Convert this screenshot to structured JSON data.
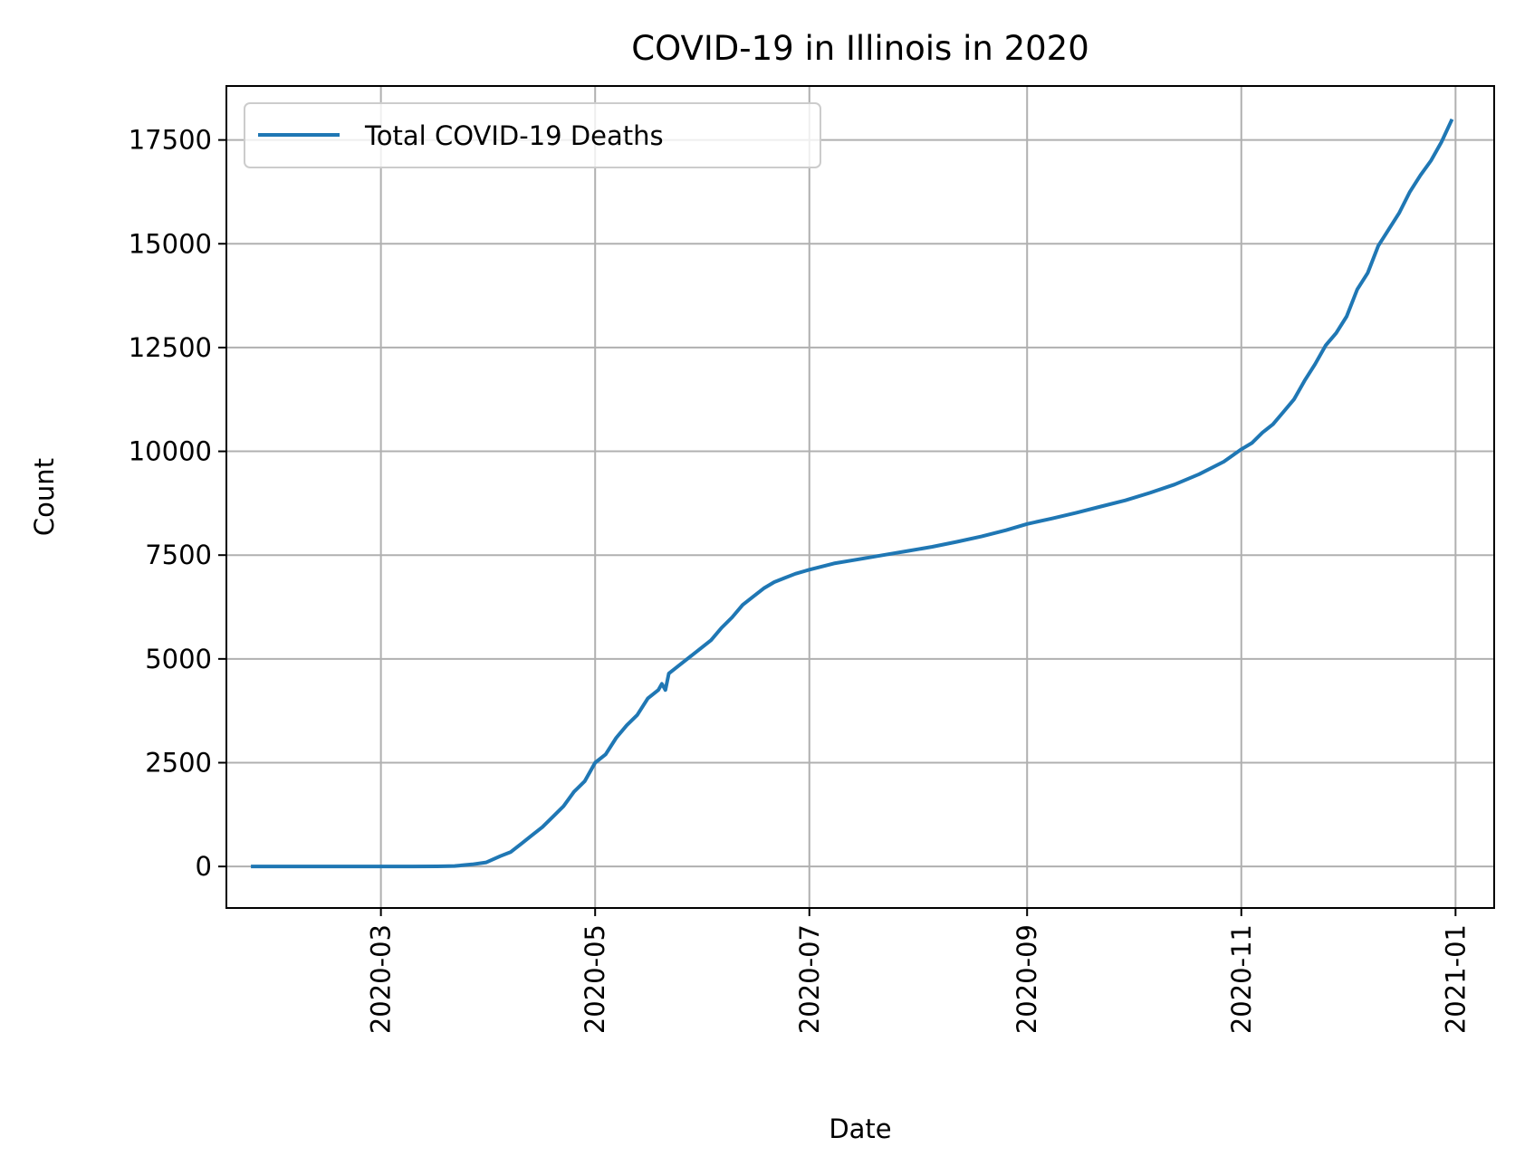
{
  "chart_data": {
    "type": "line",
    "title": "COVID-19 in Illinois in 2020",
    "xlabel": "Date",
    "ylabel": "Count",
    "xlim": [
      "2020-01-17",
      "2021-01-12"
    ],
    "ylim": [
      -1000,
      18800
    ],
    "x_ticks": [
      "2020-03-01",
      "2020-05-01",
      "2020-07-01",
      "2020-09-01",
      "2020-11-01",
      "2021-01-01"
    ],
    "x_tick_labels": [
      "2020-03",
      "2020-05",
      "2020-07",
      "2020-09",
      "2020-11",
      "2021-01"
    ],
    "y_ticks": [
      0,
      2500,
      5000,
      7500,
      10000,
      12500,
      15000,
      17500
    ],
    "y_tick_labels": [
      "0",
      "2500",
      "5000",
      "7500",
      "10000",
      "12500",
      "15000",
      "17500"
    ],
    "grid": true,
    "legend": {
      "placement": "top-left",
      "entries": [
        "Total COVID-19 Deaths"
      ]
    },
    "series": [
      {
        "name": "Total COVID-19 Deaths",
        "color": "#1f77b4",
        "points": [
          [
            "2020-01-24",
            0
          ],
          [
            "2020-02-15",
            0
          ],
          [
            "2020-03-01",
            0
          ],
          [
            "2020-03-10",
            0
          ],
          [
            "2020-03-17",
            2
          ],
          [
            "2020-03-22",
            12
          ],
          [
            "2020-03-27",
            50
          ],
          [
            "2020-03-31",
            100
          ],
          [
            "2020-04-04",
            250
          ],
          [
            "2020-04-07",
            350
          ],
          [
            "2020-04-10",
            550
          ],
          [
            "2020-04-13",
            750
          ],
          [
            "2020-04-16",
            950
          ],
          [
            "2020-04-19",
            1200
          ],
          [
            "2020-04-22",
            1450
          ],
          [
            "2020-04-25",
            1800
          ],
          [
            "2020-04-28",
            2050
          ],
          [
            "2020-05-01",
            2500
          ],
          [
            "2020-05-04",
            2700
          ],
          [
            "2020-05-07",
            3100
          ],
          [
            "2020-05-10",
            3400
          ],
          [
            "2020-05-13",
            3650
          ],
          [
            "2020-05-16",
            4050
          ],
          [
            "2020-05-19",
            4250
          ],
          [
            "2020-05-20",
            4400
          ],
          [
            "2020-05-21",
            4250
          ],
          [
            "2020-05-22",
            4650
          ],
          [
            "2020-05-25",
            4850
          ],
          [
            "2020-05-28",
            5050
          ],
          [
            "2020-05-31",
            5250
          ],
          [
            "2020-06-03",
            5450
          ],
          [
            "2020-06-06",
            5750
          ],
          [
            "2020-06-09",
            6000
          ],
          [
            "2020-06-12",
            6300
          ],
          [
            "2020-06-15",
            6500
          ],
          [
            "2020-06-18",
            6700
          ],
          [
            "2020-06-21",
            6850
          ],
          [
            "2020-06-24",
            6950
          ],
          [
            "2020-06-27",
            7050
          ],
          [
            "2020-07-01",
            7150
          ],
          [
            "2020-07-08",
            7300
          ],
          [
            "2020-07-15",
            7400
          ],
          [
            "2020-07-22",
            7500
          ],
          [
            "2020-07-29",
            7600
          ],
          [
            "2020-08-05",
            7700
          ],
          [
            "2020-08-12",
            7820
          ],
          [
            "2020-08-19",
            7950
          ],
          [
            "2020-08-26",
            8100
          ],
          [
            "2020-09-01",
            8250
          ],
          [
            "2020-09-08",
            8380
          ],
          [
            "2020-09-15",
            8520
          ],
          [
            "2020-09-22",
            8670
          ],
          [
            "2020-09-29",
            8820
          ],
          [
            "2020-10-06",
            9000
          ],
          [
            "2020-10-13",
            9200
          ],
          [
            "2020-10-20",
            9450
          ],
          [
            "2020-10-27",
            9750
          ],
          [
            "2020-11-01",
            10050
          ],
          [
            "2020-11-04",
            10200
          ],
          [
            "2020-11-07",
            10450
          ],
          [
            "2020-11-10",
            10650
          ],
          [
            "2020-11-13",
            10950
          ],
          [
            "2020-11-16",
            11250
          ],
          [
            "2020-11-19",
            11700
          ],
          [
            "2020-11-22",
            12100
          ],
          [
            "2020-11-25",
            12550
          ],
          [
            "2020-11-28",
            12850
          ],
          [
            "2020-12-01",
            13250
          ],
          [
            "2020-12-04",
            13900
          ],
          [
            "2020-12-07",
            14300
          ],
          [
            "2020-12-10",
            14950
          ],
          [
            "2020-12-13",
            15350
          ],
          [
            "2020-12-16",
            15750
          ],
          [
            "2020-12-19",
            16250
          ],
          [
            "2020-12-22",
            16650
          ],
          [
            "2020-12-25",
            17000
          ],
          [
            "2020-12-28",
            17450
          ],
          [
            "2020-12-31",
            18000
          ]
        ]
      }
    ]
  }
}
